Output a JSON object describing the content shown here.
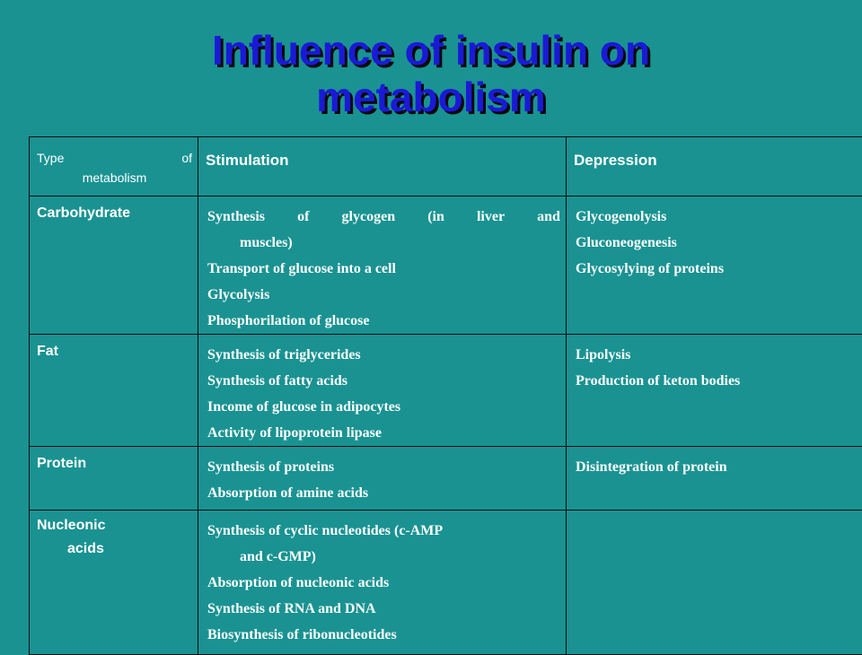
{
  "slide": {
    "title_line1": "Influence of insulin on",
    "title_line2": "metabolism"
  },
  "table": {
    "headers": {
      "type_word1": "Type",
      "type_word2": "of",
      "type_word3": "metabolism",
      "stimulation": "Stimulation",
      "depression": "Depression"
    },
    "rows": [
      {
        "type": "Carbohydrate",
        "stimulation": {
          "line1_words": [
            "Synthesis",
            "of",
            "glycogen",
            "(in",
            "liver",
            "and"
          ],
          "line1_cont": "muscles)",
          "others": [
            "Transport of glucose into a cell",
            "Glycolysis",
            "Phosphorilation of glucose"
          ]
        },
        "depression": [
          "Glycogenolysis",
          "Gluconeogenesis",
          "Glycosylying of proteins"
        ]
      },
      {
        "type": "Fat",
        "stimulation": [
          "Synthesis of triglycerides",
          "Synthesis of fatty acids",
          "Income of glucose in adipocytes",
          "Activity of lipoprotein lipase"
        ],
        "depression": [
          "Lipolysis",
          "Production of keton bodies"
        ]
      },
      {
        "type": "Protein",
        "stimulation": [
          "Synthesis of proteins",
          "Absorption of amine acids"
        ],
        "depression": [
          "Disintegration of protein"
        ]
      },
      {
        "type_line1": "Nucleonic",
        "type_line2": "acids",
        "stimulation": {
          "line1": "Synthesis of cyclic nucleotides (c-AMP",
          "line1_cont": "and c-GMP)",
          "others": [
            "Absorption of nucleonic acids",
            "Synthesis of RNA and DNA",
            "Biosynthesis of ribonucleotides"
          ]
        },
        "depression": []
      }
    ]
  },
  "colors": {
    "background": "#1a9292",
    "title": "#1a1ad6",
    "text": "#ffffff",
    "border": "#0d0d0d"
  }
}
